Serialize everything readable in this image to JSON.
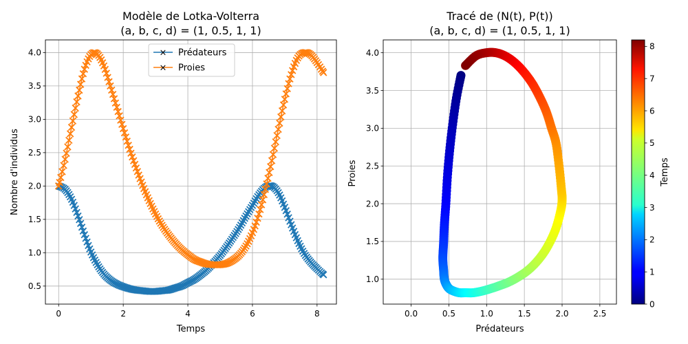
{
  "chart_data": [
    {
      "type": "line",
      "title": "Modèle de Lotka-Volterra\n(a, b, c, d) = (1, 0.5, 1, 1)",
      "xlabel": "Temps",
      "ylabel": "Nombre d'individus",
      "xlim": [
        -0.41,
        8.6
      ],
      "ylim": [
        0.23,
        4.19
      ],
      "xticks": [
        0,
        2,
        4,
        6,
        8
      ],
      "yticks": [
        0.5,
        1.0,
        1.5,
        2.0,
        2.5,
        3.0,
        3.5,
        4.0
      ],
      "grid": true,
      "legend": "top-center",
      "marker": "x",
      "series": [
        {
          "name": "Prédateurs",
          "color": "#1f77b4",
          "x": [
            0.0,
            0.2,
            0.4,
            0.6,
            0.8,
            1.0,
            1.2,
            1.4,
            1.6,
            1.8,
            2.0,
            2.2,
            2.4,
            2.6,
            2.8,
            3.0,
            3.2,
            3.4,
            3.6,
            3.8,
            4.0,
            4.2,
            4.4,
            4.6,
            4.8,
            5.0,
            5.2,
            5.4,
            5.6,
            5.8,
            6.0,
            6.2,
            6.4,
            6.6,
            6.8,
            7.0,
            7.2,
            7.4,
            7.6,
            7.8,
            8.0,
            8.2
          ],
          "y": [
            2.0,
            1.95,
            1.8,
            1.55,
            1.27,
            1.01,
            0.82,
            0.68,
            0.59,
            0.53,
            0.49,
            0.46,
            0.44,
            0.43,
            0.42,
            0.42,
            0.43,
            0.44,
            0.47,
            0.5,
            0.55,
            0.6,
            0.67,
            0.75,
            0.85,
            0.96,
            1.09,
            1.23,
            1.38,
            1.55,
            1.71,
            1.87,
            1.98,
            2.0,
            1.9,
            1.68,
            1.42,
            1.18,
            0.99,
            0.86,
            0.76,
            0.67
          ]
        },
        {
          "name": "Proies",
          "color": "#ff7f0e",
          "x": [
            0.0,
            0.2,
            0.4,
            0.6,
            0.8,
            1.0,
            1.2,
            1.4,
            1.6,
            1.8,
            2.0,
            2.2,
            2.4,
            2.6,
            2.8,
            3.0,
            3.2,
            3.4,
            3.6,
            3.8,
            4.0,
            4.2,
            4.4,
            4.6,
            4.8,
            5.0,
            5.2,
            5.4,
            5.6,
            5.8,
            6.0,
            6.2,
            6.4,
            6.6,
            6.8,
            7.0,
            7.2,
            7.4,
            7.6,
            7.8,
            8.0,
            8.2
          ],
          "y": [
            2.0,
            2.4,
            2.88,
            3.35,
            3.75,
            3.97,
            3.98,
            3.8,
            3.5,
            3.18,
            2.86,
            2.55,
            2.27,
            2.01,
            1.78,
            1.58,
            1.41,
            1.27,
            1.15,
            1.05,
            0.97,
            0.9,
            0.86,
            0.83,
            0.82,
            0.82,
            0.84,
            0.89,
            0.97,
            1.1,
            1.3,
            1.58,
            1.95,
            2.38,
            2.85,
            3.3,
            3.67,
            3.92,
            4.0,
            3.97,
            3.85,
            3.7
          ]
        }
      ]
    },
    {
      "type": "scatter",
      "title": "Tracé de (N(t), P(t))\n(a, b, c, d) = (1, 0.5, 1, 1)",
      "xlabel": "Prédateurs",
      "ylabel": "Proies",
      "xlim": [
        -0.37,
        2.72
      ],
      "ylim": [
        0.67,
        4.17
      ],
      "xticks": [
        0.0,
        0.5,
        1.0,
        1.5,
        2.0,
        2.5
      ],
      "yticks": [
        1.0,
        1.5,
        2.0,
        2.5,
        3.0,
        3.5,
        4.0
      ],
      "grid": true,
      "colormap": "jet",
      "colorbar": {
        "label": "Temps",
        "range": [
          0,
          8.2
        ],
        "ticks": [
          0,
          1,
          2,
          3,
          4,
          5,
          6,
          7,
          8
        ]
      },
      "points": {
        "t": [
          0.0,
          0.2,
          0.4,
          0.6,
          0.8,
          1.0,
          1.2,
          1.4,
          1.6,
          1.8,
          2.0,
          2.2,
          2.4,
          2.6,
          2.8,
          3.0,
          3.2,
          3.4,
          3.6,
          3.8,
          4.0,
          4.2,
          4.4,
          4.6,
          4.8,
          5.0,
          5.2,
          5.4,
          5.6,
          5.8,
          6.0,
          6.2,
          6.4,
          6.6,
          6.8,
          7.0,
          7.2,
          7.4,
          7.6,
          7.8,
          8.0,
          8.2
        ],
        "x": [
          0.66,
          0.6,
          0.55,
          0.51,
          0.48,
          0.46,
          0.44,
          0.43,
          0.42,
          0.43,
          0.44,
          0.47,
          0.51,
          0.57,
          0.64,
          0.72,
          0.82,
          0.93,
          1.04,
          1.16,
          1.29,
          1.42,
          1.55,
          1.68,
          1.8,
          1.91,
          1.98,
          2.0,
          1.99,
          1.96,
          1.92,
          1.86,
          1.79,
          1.7,
          1.6,
          1.48,
          1.36,
          1.24,
          1.12,
          1.0,
          0.86,
          0.72
        ],
        "y": [
          3.7,
          3.4,
          3.05,
          2.7,
          2.35,
          2.0,
          1.72,
          1.48,
          1.28,
          1.12,
          1.0,
          0.92,
          0.87,
          0.84,
          0.82,
          0.82,
          0.82,
          0.84,
          0.87,
          0.91,
          0.96,
          1.03,
          1.12,
          1.25,
          1.42,
          1.65,
          1.9,
          2.05,
          2.2,
          2.5,
          2.8,
          3.0,
          3.22,
          3.42,
          3.6,
          3.76,
          3.88,
          3.96,
          4.0,
          4.0,
          3.96,
          3.83
        ]
      }
    }
  ]
}
